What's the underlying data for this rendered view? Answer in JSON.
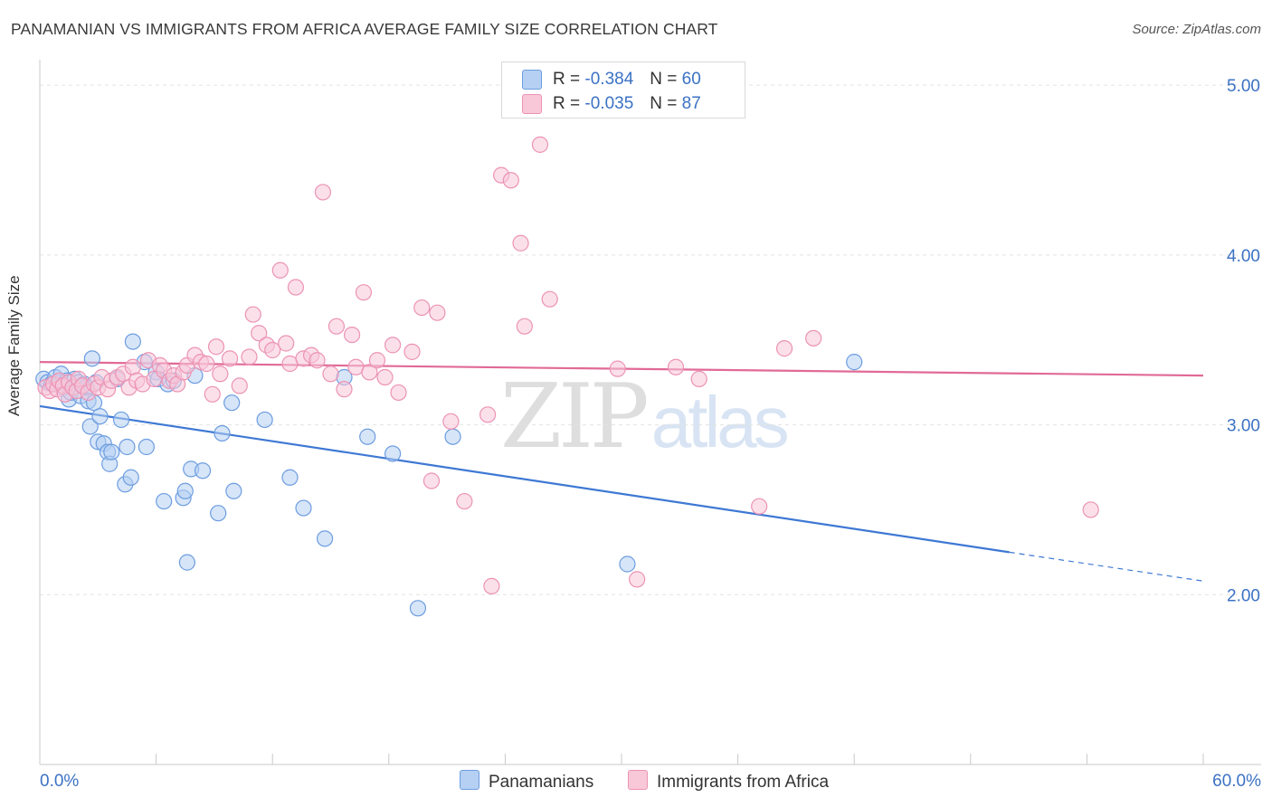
{
  "title": "PANAMANIAN VS IMMIGRANTS FROM AFRICA AVERAGE FAMILY SIZE CORRELATION CHART",
  "source": "Source: ZipAtlas.com",
  "watermark": {
    "part1": "ZIP",
    "part2": "atlas"
  },
  "legend": {
    "rows": [
      {
        "r_label": "R =",
        "r_value": "-0.384",
        "n_label": "N =",
        "n_value": "60"
      },
      {
        "r_label": "R =",
        "r_value": "-0.035",
        "n_label": "N =",
        "n_value": "87"
      }
    ]
  },
  "colors": {
    "blue": "#3e78d4",
    "blue_fill": "#b5d0f3",
    "blue_stroke": "#6d9de0",
    "pink": "#e16a96",
    "pink_fill": "#f8c7d8",
    "pink_stroke": "#ec93b4",
    "grid": "#e3e3e3",
    "tick_label": "#3b72c4"
  },
  "chart_data": {
    "type": "scatter",
    "title": "PANAMANIAN VS IMMIGRANTS FROM AFRICA AVERAGE FAMILY SIZE CORRELATION CHART",
    "xlabel": "",
    "ylabel": "Average Family Size",
    "xlim": [
      0,
      60
    ],
    "ylim": [
      1.0,
      5.15
    ],
    "x_tick_labels": [
      "0.0%",
      "60.0%"
    ],
    "y_ticks": [
      2.0,
      3.0,
      4.0,
      5.0
    ],
    "y_tick_labels": [
      "2.00",
      "3.00",
      "4.00",
      "5.00"
    ],
    "grid": true,
    "legend_position": "top-center",
    "series": [
      {
        "name": "Panamanians",
        "color": "#3e78d4",
        "trend": {
          "x_start": 0.0,
          "y_start": 3.11,
          "x_end": 50.0,
          "y_end": 2.25,
          "x_dash_end": 60.0,
          "y_dash_end": 2.08
        },
        "points": [
          [
            0.2,
            3.27
          ],
          [
            0.4,
            3.25
          ],
          [
            0.6,
            3.24
          ],
          [
            0.8,
            3.28
          ],
          [
            1.0,
            3.25
          ],
          [
            1.1,
            3.3
          ],
          [
            1.2,
            3.22
          ],
          [
            1.4,
            3.26
          ],
          [
            1.5,
            3.15
          ],
          [
            1.6,
            3.19
          ],
          [
            1.8,
            3.27
          ],
          [
            2.0,
            3.25
          ],
          [
            2.1,
            3.17
          ],
          [
            2.3,
            3.24
          ],
          [
            2.4,
            3.22
          ],
          [
            2.5,
            3.14
          ],
          [
            2.6,
            2.99
          ],
          [
            2.7,
            3.39
          ],
          [
            2.8,
            3.13
          ],
          [
            2.9,
            3.25
          ],
          [
            3.0,
            2.9
          ],
          [
            3.1,
            3.05
          ],
          [
            3.3,
            2.89
          ],
          [
            3.5,
            2.84
          ],
          [
            3.6,
            2.77
          ],
          [
            3.7,
            2.84
          ],
          [
            4.0,
            3.27
          ],
          [
            4.2,
            3.03
          ],
          [
            4.4,
            2.65
          ],
          [
            4.5,
            2.87
          ],
          [
            4.7,
            2.69
          ],
          [
            4.8,
            3.49
          ],
          [
            5.4,
            3.37
          ],
          [
            5.5,
            2.87
          ],
          [
            6.0,
            3.31
          ],
          [
            6.1,
            3.27
          ],
          [
            6.4,
            2.55
          ],
          [
            6.6,
            3.24
          ],
          [
            6.9,
            3.26
          ],
          [
            7.4,
            2.57
          ],
          [
            7.5,
            2.61
          ],
          [
            7.6,
            2.19
          ],
          [
            7.8,
            2.74
          ],
          [
            8.0,
            3.29
          ],
          [
            8.4,
            2.73
          ],
          [
            9.2,
            2.48
          ],
          [
            9.4,
            2.95
          ],
          [
            9.9,
            3.13
          ],
          [
            10.0,
            2.61
          ],
          [
            11.6,
            3.03
          ],
          [
            12.9,
            2.69
          ],
          [
            13.6,
            2.51
          ],
          [
            14.7,
            2.33
          ],
          [
            15.7,
            3.28
          ],
          [
            16.9,
            2.93
          ],
          [
            18.2,
            2.83
          ],
          [
            19.5,
            1.92
          ],
          [
            21.3,
            2.93
          ],
          [
            30.3,
            2.18
          ],
          [
            42.0,
            3.37
          ]
        ]
      },
      {
        "name": "Immigrants from Africa",
        "color": "#e16a96",
        "trend": {
          "x_start": 0.0,
          "y_start": 3.37,
          "x_end": 60.0,
          "y_end": 3.29
        },
        "points": [
          [
            0.3,
            3.22
          ],
          [
            0.5,
            3.2
          ],
          [
            0.7,
            3.24
          ],
          [
            0.9,
            3.21
          ],
          [
            1.0,
            3.26
          ],
          [
            1.2,
            3.23
          ],
          [
            1.3,
            3.18
          ],
          [
            1.5,
            3.25
          ],
          [
            1.7,
            3.22
          ],
          [
            1.9,
            3.2
          ],
          [
            2.0,
            3.27
          ],
          [
            2.2,
            3.23
          ],
          [
            2.5,
            3.19
          ],
          [
            2.8,
            3.24
          ],
          [
            3.0,
            3.22
          ],
          [
            3.2,
            3.28
          ],
          [
            3.5,
            3.21
          ],
          [
            3.7,
            3.26
          ],
          [
            4.0,
            3.28
          ],
          [
            4.3,
            3.3
          ],
          [
            4.6,
            3.22
          ],
          [
            4.8,
            3.34
          ],
          [
            5.0,
            3.26
          ],
          [
            5.3,
            3.24
          ],
          [
            5.6,
            3.38
          ],
          [
            5.9,
            3.27
          ],
          [
            6.2,
            3.35
          ],
          [
            6.4,
            3.32
          ],
          [
            6.7,
            3.26
          ],
          [
            6.9,
            3.29
          ],
          [
            7.1,
            3.24
          ],
          [
            7.4,
            3.31
          ],
          [
            7.6,
            3.35
          ],
          [
            8.0,
            3.41
          ],
          [
            8.3,
            3.37
          ],
          [
            8.6,
            3.36
          ],
          [
            8.9,
            3.18
          ],
          [
            9.1,
            3.46
          ],
          [
            9.3,
            3.3
          ],
          [
            9.8,
            3.39
          ],
          [
            10.3,
            3.23
          ],
          [
            10.8,
            3.4
          ],
          [
            11.0,
            3.65
          ],
          [
            11.3,
            3.54
          ],
          [
            11.7,
            3.47
          ],
          [
            12.0,
            3.44
          ],
          [
            12.4,
            3.91
          ],
          [
            12.7,
            3.48
          ],
          [
            12.9,
            3.36
          ],
          [
            13.2,
            3.81
          ],
          [
            13.6,
            3.39
          ],
          [
            14.0,
            3.41
          ],
          [
            14.3,
            3.38
          ],
          [
            14.6,
            4.37
          ],
          [
            15.0,
            3.3
          ],
          [
            15.3,
            3.58
          ],
          [
            15.7,
            3.21
          ],
          [
            16.1,
            3.53
          ],
          [
            16.3,
            3.34
          ],
          [
            16.7,
            3.78
          ],
          [
            17.0,
            3.31
          ],
          [
            17.4,
            3.38
          ],
          [
            17.8,
            3.28
          ],
          [
            18.2,
            3.47
          ],
          [
            18.5,
            3.19
          ],
          [
            19.2,
            3.43
          ],
          [
            19.7,
            3.69
          ],
          [
            20.2,
            2.67
          ],
          [
            20.5,
            3.66
          ],
          [
            21.2,
            3.02
          ],
          [
            21.9,
            2.55
          ],
          [
            23.1,
            3.06
          ],
          [
            23.3,
            2.05
          ],
          [
            23.8,
            4.47
          ],
          [
            24.3,
            4.44
          ],
          [
            24.8,
            4.07
          ],
          [
            25.0,
            3.58
          ],
          [
            25.8,
            4.65
          ],
          [
            26.3,
            3.74
          ],
          [
            29.8,
            3.33
          ],
          [
            30.8,
            2.09
          ],
          [
            32.8,
            3.34
          ],
          [
            34.0,
            3.27
          ],
          [
            37.1,
            2.52
          ],
          [
            38.4,
            3.45
          ],
          [
            39.9,
            3.51
          ],
          [
            54.2,
            2.5
          ]
        ]
      }
    ]
  }
}
